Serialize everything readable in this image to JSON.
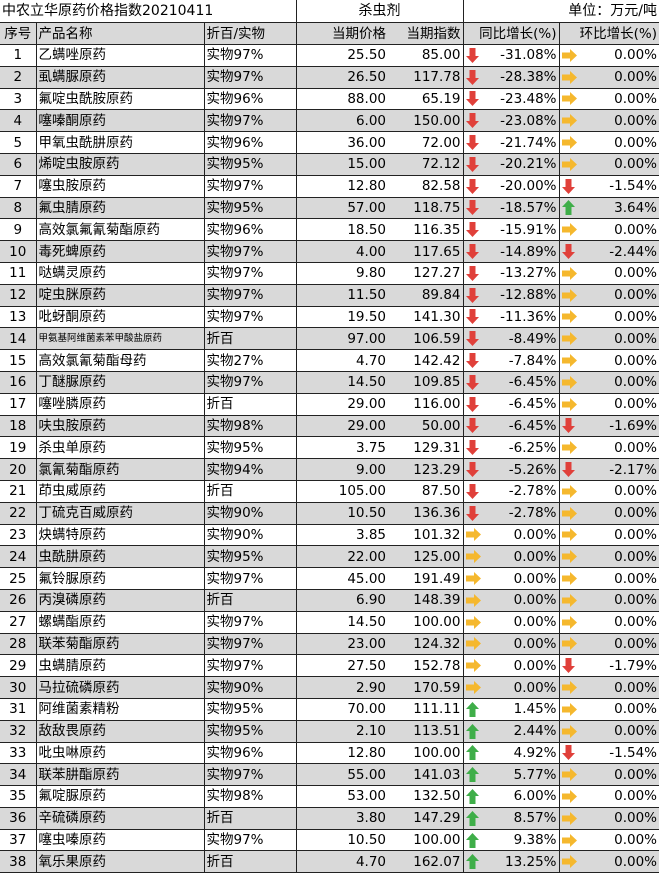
{
  "title": "中农立华原药价格指数20210411",
  "category": "杀虫剂",
  "unit": "单位：万元/吨",
  "headers": [
    "序号",
    "产品名称",
    "折百/实物",
    "当期价格",
    "当期指数",
    "同比增长(%)",
    "环比增长(%)"
  ],
  "colors": {
    "down": "#e0403a",
    "flat": "#f5b82e",
    "up": "#3fae49",
    "stripe": "#d9d9d9"
  },
  "rows": [
    {
      "no": "1",
      "name": "乙螨唑原药",
      "spec": "实物97%",
      "price": "25.50",
      "index": "85.00",
      "yoy": "-31.08%",
      "yoy_icon": "down",
      "mom": "0.00%",
      "mom_icon": "flat"
    },
    {
      "no": "2",
      "name": "虱螨脲原药",
      "spec": "实物97%",
      "price": "26.50",
      "index": "117.78",
      "yoy": "-28.38%",
      "yoy_icon": "down",
      "mom": "0.00%",
      "mom_icon": "flat"
    },
    {
      "no": "3",
      "name": "氟啶虫酰胺原药",
      "spec": "实物96%",
      "price": "88.00",
      "index": "65.19",
      "yoy": "-23.48%",
      "yoy_icon": "down",
      "mom": "0.00%",
      "mom_icon": "flat"
    },
    {
      "no": "4",
      "name": "噻嗪酮原药",
      "spec": "实物97%",
      "price": "6.00",
      "index": "150.00",
      "yoy": "-23.08%",
      "yoy_icon": "down",
      "mom": "0.00%",
      "mom_icon": "flat"
    },
    {
      "no": "5",
      "name": "甲氧虫酰肼原药",
      "spec": "实物96%",
      "price": "36.00",
      "index": "72.00",
      "yoy": "-21.74%",
      "yoy_icon": "down",
      "mom": "0.00%",
      "mom_icon": "flat"
    },
    {
      "no": "6",
      "name": "烯啶虫胺原药",
      "spec": "实物95%",
      "price": "15.00",
      "index": "72.12",
      "yoy": "-20.21%",
      "yoy_icon": "down",
      "mom": "0.00%",
      "mom_icon": "flat"
    },
    {
      "no": "7",
      "name": "噻虫胺原药",
      "spec": "实物97%",
      "price": "12.80",
      "index": "82.58",
      "yoy": "-20.00%",
      "yoy_icon": "down",
      "mom": "-1.54%",
      "mom_icon": "down"
    },
    {
      "no": "8",
      "name": "氟虫腈原药",
      "spec": "实物95%",
      "price": "57.00",
      "index": "118.75",
      "yoy": "-18.57%",
      "yoy_icon": "down",
      "mom": "3.64%",
      "mom_icon": "up"
    },
    {
      "no": "9",
      "name": "高效氯氟氰菊酯原药",
      "spec": "实物96%",
      "price": "18.50",
      "index": "116.35",
      "yoy": "-15.91%",
      "yoy_icon": "down",
      "mom": "0.00%",
      "mom_icon": "flat"
    },
    {
      "no": "10",
      "name": "毒死蜱原药",
      "spec": "实物97%",
      "price": "4.00",
      "index": "117.65",
      "yoy": "-14.89%",
      "yoy_icon": "down",
      "mom": "-2.44%",
      "mom_icon": "down"
    },
    {
      "no": "11",
      "name": "哒螨灵原药",
      "spec": "实物97%",
      "price": "9.80",
      "index": "127.27",
      "yoy": "-13.27%",
      "yoy_icon": "down",
      "mom": "0.00%",
      "mom_icon": "flat"
    },
    {
      "no": "12",
      "name": "啶虫脒原药",
      "spec": "实物97%",
      "price": "11.50",
      "index": "89.84",
      "yoy": "-12.88%",
      "yoy_icon": "down",
      "mom": "0.00%",
      "mom_icon": "flat"
    },
    {
      "no": "13",
      "name": "吡蚜酮原药",
      "spec": "实物97%",
      "price": "19.50",
      "index": "141.30",
      "yoy": "-11.36%",
      "yoy_icon": "down",
      "mom": "0.00%",
      "mom_icon": "flat"
    },
    {
      "no": "14",
      "name": "甲氨基阿维菌素苯甲酸盐原药",
      "spec": "折百",
      "price": "97.00",
      "index": "106.59",
      "yoy": "-8.49%",
      "yoy_icon": "down",
      "mom": "0.00%",
      "mom_icon": "flat",
      "small": true
    },
    {
      "no": "15",
      "name": "高效氯氰菊酯母药",
      "spec": "实物27%",
      "price": "4.70",
      "index": "142.42",
      "yoy": "-7.84%",
      "yoy_icon": "down",
      "mom": "0.00%",
      "mom_icon": "flat"
    },
    {
      "no": "16",
      "name": "丁醚脲原药",
      "spec": "实物97%",
      "price": "14.50",
      "index": "109.85",
      "yoy": "-6.45%",
      "yoy_icon": "down",
      "mom": "0.00%",
      "mom_icon": "flat"
    },
    {
      "no": "17",
      "name": "噻唑膦原药",
      "spec": "折百",
      "price": "29.00",
      "index": "116.00",
      "yoy": "-6.45%",
      "yoy_icon": "down",
      "mom": "0.00%",
      "mom_icon": "flat"
    },
    {
      "no": "18",
      "name": "呋虫胺原药",
      "spec": "实物98%",
      "price": "29.00",
      "index": "50.00",
      "yoy": "-6.45%",
      "yoy_icon": "down",
      "mom": "-1.69%",
      "mom_icon": "down"
    },
    {
      "no": "19",
      "name": "杀虫单原药",
      "spec": "实物95%",
      "price": "3.75",
      "index": "129.31",
      "yoy": "-6.25%",
      "yoy_icon": "down",
      "mom": "0.00%",
      "mom_icon": "flat"
    },
    {
      "no": "20",
      "name": "氯氰菊酯原药",
      "spec": "实物94%",
      "price": "9.00",
      "index": "123.29",
      "yoy": "-5.26%",
      "yoy_icon": "down",
      "mom": "-2.17%",
      "mom_icon": "down"
    },
    {
      "no": "21",
      "name": "茚虫威原药",
      "spec": "折百",
      "price": "105.00",
      "index": "87.50",
      "yoy": "-2.78%",
      "yoy_icon": "down",
      "mom": "0.00%",
      "mom_icon": "flat"
    },
    {
      "no": "22",
      "name": "丁硫克百威原药",
      "spec": "实物90%",
      "price": "10.50",
      "index": "136.36",
      "yoy": "-2.78%",
      "yoy_icon": "down",
      "mom": "0.00%",
      "mom_icon": "flat"
    },
    {
      "no": "23",
      "name": "炔螨特原药",
      "spec": "实物90%",
      "price": "3.85",
      "index": "101.32",
      "yoy": "0.00%",
      "yoy_icon": "flat",
      "mom": "0.00%",
      "mom_icon": "flat"
    },
    {
      "no": "24",
      "name": "虫酰肼原药",
      "spec": "实物95%",
      "price": "22.00",
      "index": "125.00",
      "yoy": "0.00%",
      "yoy_icon": "flat",
      "mom": "0.00%",
      "mom_icon": "flat"
    },
    {
      "no": "25",
      "name": "氟铃脲原药",
      "spec": "实物97%",
      "price": "45.00",
      "index": "191.49",
      "yoy": "0.00%",
      "yoy_icon": "flat",
      "mom": "0.00%",
      "mom_icon": "flat"
    },
    {
      "no": "26",
      "name": "丙溴磷原药",
      "spec": "折百",
      "price": "6.90",
      "index": "148.39",
      "yoy": "0.00%",
      "yoy_icon": "flat",
      "mom": "0.00%",
      "mom_icon": "flat"
    },
    {
      "no": "27",
      "name": "螺螨酯原药",
      "spec": "实物97%",
      "price": "14.50",
      "index": "100.00",
      "yoy": "0.00%",
      "yoy_icon": "flat",
      "mom": "0.00%",
      "mom_icon": "flat"
    },
    {
      "no": "28",
      "name": "联苯菊酯原药",
      "spec": "实物97%",
      "price": "23.00",
      "index": "124.32",
      "yoy": "0.00%",
      "yoy_icon": "flat",
      "mom": "0.00%",
      "mom_icon": "flat"
    },
    {
      "no": "29",
      "name": "虫螨腈原药",
      "spec": "实物97%",
      "price": "27.50",
      "index": "152.78",
      "yoy": "0.00%",
      "yoy_icon": "flat",
      "mom": "-1.79%",
      "mom_icon": "down"
    },
    {
      "no": "30",
      "name": "马拉硫磷原药",
      "spec": "实物90%",
      "price": "2.90",
      "index": "170.59",
      "yoy": "0.00%",
      "yoy_icon": "flat",
      "mom": "0.00%",
      "mom_icon": "flat"
    },
    {
      "no": "31",
      "name": "阿维菌素精粉",
      "spec": "实物95%",
      "price": "70.00",
      "index": "111.11",
      "yoy": "1.45%",
      "yoy_icon": "up",
      "mom": "0.00%",
      "mom_icon": "flat"
    },
    {
      "no": "32",
      "name": "敌敌畏原药",
      "spec": "实物95%",
      "price": "2.10",
      "index": "113.51",
      "yoy": "2.44%",
      "yoy_icon": "up",
      "mom": "0.00%",
      "mom_icon": "flat"
    },
    {
      "no": "33",
      "name": "吡虫啉原药",
      "spec": "实物96%",
      "price": "12.80",
      "index": "100.00",
      "yoy": "4.92%",
      "yoy_icon": "up",
      "mom": "-1.54%",
      "mom_icon": "down"
    },
    {
      "no": "34",
      "name": "联苯肼酯原药",
      "spec": "实物97%",
      "price": "55.00",
      "index": "141.03",
      "yoy": "5.77%",
      "yoy_icon": "up",
      "mom": "0.00%",
      "mom_icon": "flat"
    },
    {
      "no": "35",
      "name": "氟啶脲原药",
      "spec": "实物98%",
      "price": "53.00",
      "index": "132.50",
      "yoy": "6.00%",
      "yoy_icon": "up",
      "mom": "0.00%",
      "mom_icon": "flat"
    },
    {
      "no": "36",
      "name": "辛硫磷原药",
      "spec": "折百",
      "price": "3.80",
      "index": "147.29",
      "yoy": "8.57%",
      "yoy_icon": "up",
      "mom": "0.00%",
      "mom_icon": "flat"
    },
    {
      "no": "37",
      "name": "噻虫嗪原药",
      "spec": "实物97%",
      "price": "10.50",
      "index": "100.00",
      "yoy": "9.38%",
      "yoy_icon": "up",
      "mom": "0.00%",
      "mom_icon": "flat"
    },
    {
      "no": "38",
      "name": "氧乐果原药",
      "spec": "折百",
      "price": "4.70",
      "index": "162.07",
      "yoy": "13.25%",
      "yoy_icon": "up",
      "mom": "0.00%",
      "mom_icon": "flat"
    }
  ]
}
